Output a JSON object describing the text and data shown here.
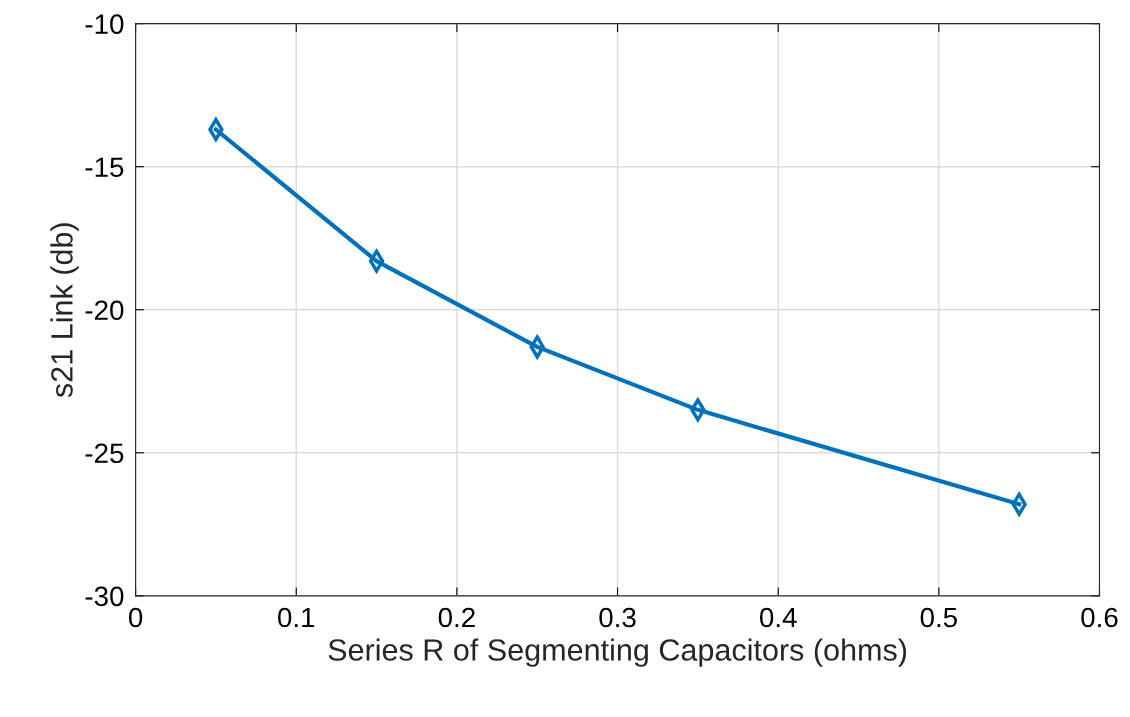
{
  "chart_data": {
    "type": "line",
    "xlabel": "Series R of Segmenting Capacitors (ohms)",
    "ylabel": "s21 Link (db)",
    "x": [
      0.05,
      0.15,
      0.25,
      0.35,
      0.55
    ],
    "series": [
      {
        "color": "#0072bd",
        "values": [
          -13.7,
          -18.3,
          -21.3,
          -23.5,
          -26.8
        ]
      }
    ],
    "xlim": [
      0,
      0.6
    ],
    "xticks": [
      0,
      0.1,
      0.2,
      0.3,
      0.4,
      0.5,
      0.6
    ],
    "ylim": [
      -30,
      -10
    ],
    "yticks": [
      -30,
      -25,
      -20,
      -15,
      -10
    ],
    "grid": true,
    "marker": "diamond",
    "line_style": "solid"
  }
}
